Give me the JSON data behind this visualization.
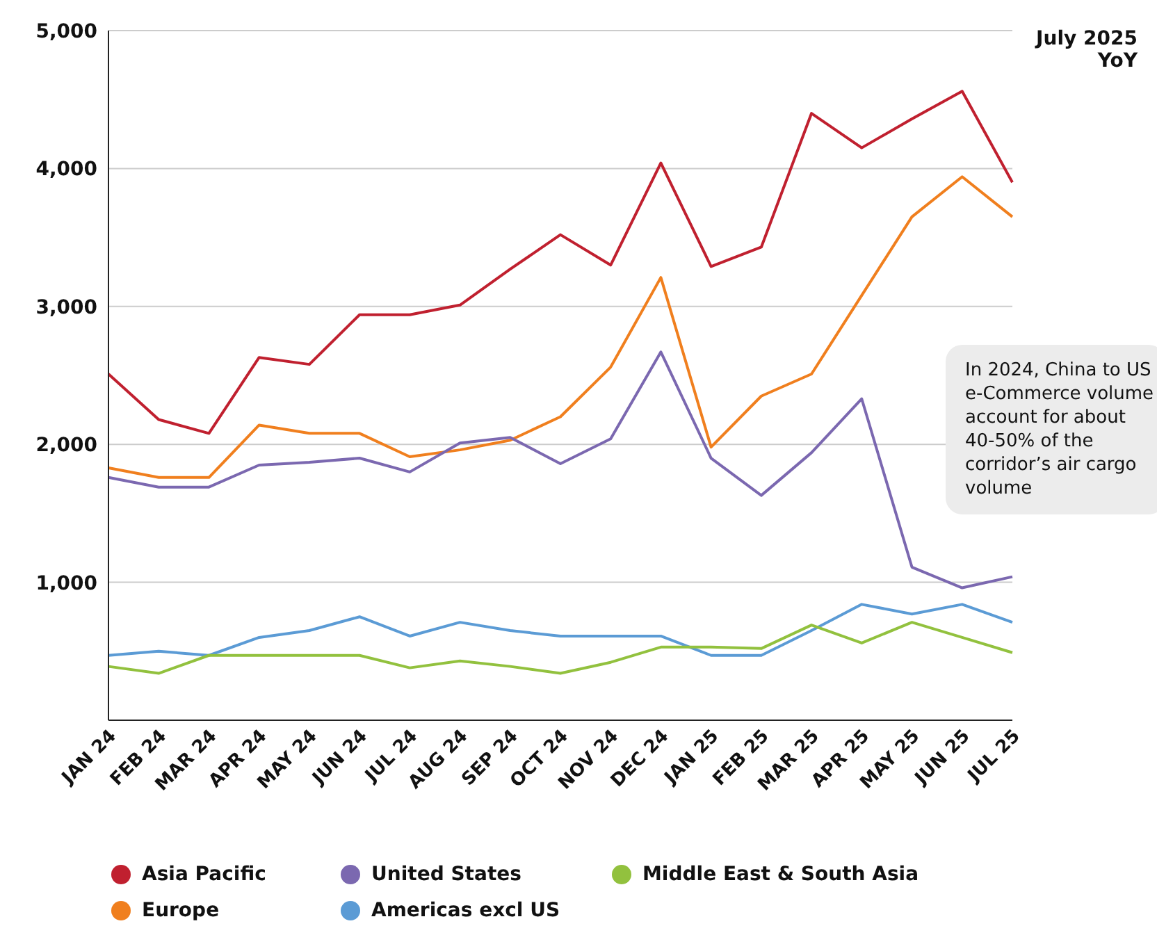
{
  "chart_data": {
    "type": "line",
    "categories": [
      "JAN 24",
      "FEB 24",
      "MAR 24",
      "APR 24",
      "MAY 24",
      "JUN 24",
      "JUL 24",
      "AUG 24",
      "SEP 24",
      "OCT 24",
      "NOV 24",
      "DEC 24",
      "JAN 25",
      "FEB 25",
      "MAR 25",
      "APR 25",
      "MAY 25",
      "JUN 25",
      "JUL 25"
    ],
    "series": [
      {
        "name": "Asia Pacific",
        "color": "#c0202f",
        "values": [
          2510,
          2180,
          2080,
          2630,
          2580,
          2940,
          2940,
          3010,
          3270,
          3520,
          3300,
          4040,
          3290,
          3430,
          4400,
          4150,
          4360,
          4560,
          3900
        ]
      },
      {
        "name": "Europe",
        "color": "#f07f1e",
        "values": [
          1830,
          1760,
          1760,
          2140,
          2080,
          2080,
          1910,
          1960,
          2030,
          2200,
          2560,
          3210,
          1980,
          2350,
          2510,
          3080,
          3650,
          3940,
          3650
        ]
      },
      {
        "name": "United States",
        "color": "#7b68b0",
        "values": [
          1760,
          1690,
          1690,
          1850,
          1870,
          1900,
          1800,
          2010,
          2050,
          1860,
          2040,
          2670,
          1900,
          1630,
          1940,
          2330,
          1110,
          960,
          1040
        ]
      },
      {
        "name": "Americas excl US",
        "color": "#5b9bd5",
        "values": [
          470,
          500,
          470,
          600,
          650,
          750,
          610,
          710,
          650,
          610,
          610,
          610,
          470,
          470,
          650,
          840,
          770,
          840,
          710
        ]
      },
      {
        "name": "Middle East & South Asia",
        "color": "#92c13e",
        "values": [
          390,
          340,
          470,
          470,
          470,
          470,
          380,
          430,
          390,
          340,
          420,
          530,
          530,
          520,
          690,
          560,
          710,
          600,
          490
        ]
      }
    ],
    "ylim": [
      0,
      5000
    ],
    "yticks": [
      {
        "value": 1000,
        "label": "1,000"
      },
      {
        "value": 2000,
        "label": "2,000"
      },
      {
        "value": 3000,
        "label": "3,000"
      },
      {
        "value": 4000,
        "label": "4,000"
      },
      {
        "value": 5000,
        "label": "5,000"
      }
    ],
    "grid": "y",
    "legend": "bottom",
    "marker": "none",
    "line_style": "solid",
    "annotations": [
      "July 2025 YoY",
      "In 2024, China to US e-Commerce volume account for about 40-50% of the corridor’s air cargo volume"
    ]
  }
}
